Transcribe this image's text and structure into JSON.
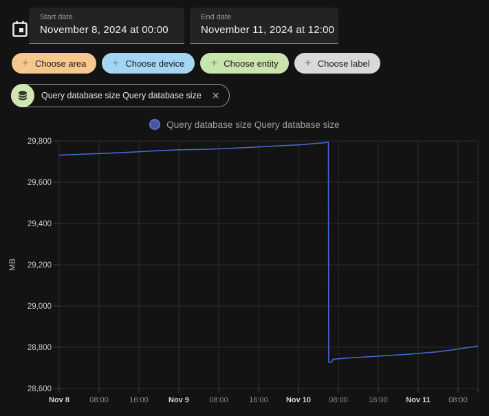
{
  "header": {
    "start_date": {
      "label": "Start date",
      "value": "November 8, 2024 at 00:00"
    },
    "end_date": {
      "label": "End date",
      "value": "November 11, 2024 at 12:00"
    }
  },
  "filters": {
    "area": {
      "label": "Choose area",
      "plus": "+",
      "bg": "#f6c78e",
      "icon_color": "#8d7250"
    },
    "device": {
      "label": "Choose device",
      "plus": "+",
      "bg": "#a4d6f4",
      "icon_color": "#4b7da8"
    },
    "entity": {
      "label": "Choose entity",
      "plus": "+",
      "bg": "#c9e4ad",
      "icon_color": "#708455"
    },
    "label": {
      "label": "Choose label",
      "plus": "+",
      "bg": "#d9d9d9",
      "icon_color": "#6e6e6e"
    }
  },
  "selected_entity": {
    "label": "Query database size Query database size",
    "icon": "database-icon",
    "icon_bg": "#cfe6b5",
    "close": "✕"
  },
  "chart_data": {
    "type": "line",
    "title": "",
    "ylabel": "MB",
    "unit": "MB",
    "ylim": [
      28600,
      29800
    ],
    "grid": true,
    "legend_position": "top-center",
    "legend": [
      {
        "label": "Query database size Query database size",
        "dot_fill": "#47549f",
        "dot_border": "#5e6fbe"
      }
    ],
    "x_range_hours": 84,
    "x_start": "Nov 8 00:00",
    "x_end": "Nov 11 12:00",
    "y_ticks": [
      {
        "v": 28600,
        "label": "28,600"
      },
      {
        "v": 28800,
        "label": "28,800"
      },
      {
        "v": 29000,
        "label": "29,000"
      },
      {
        "v": 29200,
        "label": "29,200"
      },
      {
        "v": 29400,
        "label": "29,400"
      },
      {
        "v": 29600,
        "label": "29,600"
      },
      {
        "v": 29800,
        "label": "29,800"
      }
    ],
    "x_ticks": [
      {
        "h": 0,
        "label": "Nov 8",
        "major": true
      },
      {
        "h": 8,
        "label": "08:00",
        "major": false
      },
      {
        "h": 16,
        "label": "16:00",
        "major": false
      },
      {
        "h": 24,
        "label": "Nov 9",
        "major": true
      },
      {
        "h": 32,
        "label": "08:00",
        "major": false
      },
      {
        "h": 40,
        "label": "16:00",
        "major": false
      },
      {
        "h": 48,
        "label": "Nov 10",
        "major": true
      },
      {
        "h": 56,
        "label": "08:00",
        "major": false
      },
      {
        "h": 64,
        "label": "16:00",
        "major": false
      },
      {
        "h": 72,
        "label": "Nov 11",
        "major": true
      },
      {
        "h": 80,
        "label": "08:00",
        "major": false
      },
      {
        "h": 84,
        "label": "",
        "major": false
      }
    ],
    "series": [
      {
        "name": "Query database size Query database size",
        "color": "#4269cb",
        "points_hours_mb": [
          [
            0,
            29731
          ],
          [
            7,
            29738
          ],
          [
            13,
            29744
          ],
          [
            19,
            29752
          ],
          [
            24,
            29757
          ],
          [
            30,
            29760
          ],
          [
            36,
            29766
          ],
          [
            42,
            29774
          ],
          [
            48,
            29781
          ],
          [
            53,
            29791
          ],
          [
            54,
            29794
          ],
          [
            54.05,
            28727
          ],
          [
            54.7,
            28728
          ],
          [
            54.9,
            28742
          ],
          [
            58,
            28748
          ],
          [
            64,
            28757
          ],
          [
            70,
            28766
          ],
          [
            76,
            28778
          ],
          [
            80,
            28791
          ],
          [
            84,
            28806
          ]
        ]
      }
    ]
  }
}
